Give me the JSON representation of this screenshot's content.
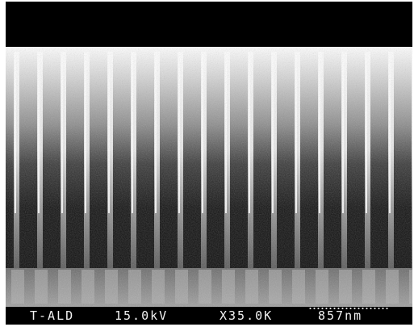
{
  "image": {
    "kind": "SEM micrograph, cross-section of vertical pillar array",
    "colors": {
      "background_band": "#000000",
      "pillar_light": "#f4f4f4",
      "trench_dark": "#0c0c0c",
      "base": "#8a8a8a"
    }
  },
  "info_bar": {
    "sample_id": "T-ALD",
    "voltage": "15.0kV",
    "magnification": "X35.0K",
    "scale": "857nm"
  }
}
